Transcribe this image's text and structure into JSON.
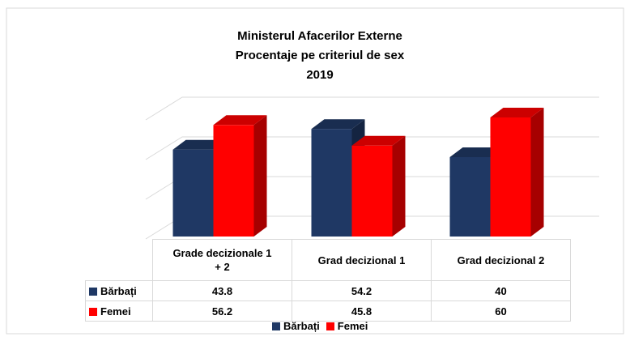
{
  "chart_data": {
    "type": "bar3d",
    "title": [
      "Ministerul Afacerilor Externe",
      "Procentaje pe criteriul de sex",
      "2019"
    ],
    "categories": [
      "Grade decizionale 1 + 2",
      "Grad decizional 1",
      "Grad decizional 2"
    ],
    "series": [
      {
        "name": "Bărbați",
        "color": "#1f3864",
        "values": [
          43.8,
          54.2,
          40
        ]
      },
      {
        "name": "Femei",
        "color": "#ff0000",
        "values": [
          56.2,
          45.8,
          60
        ]
      }
    ],
    "ylim": [
      0,
      60
    ],
    "yticks": [
      0,
      20,
      40,
      60
    ],
    "grid": true
  }
}
